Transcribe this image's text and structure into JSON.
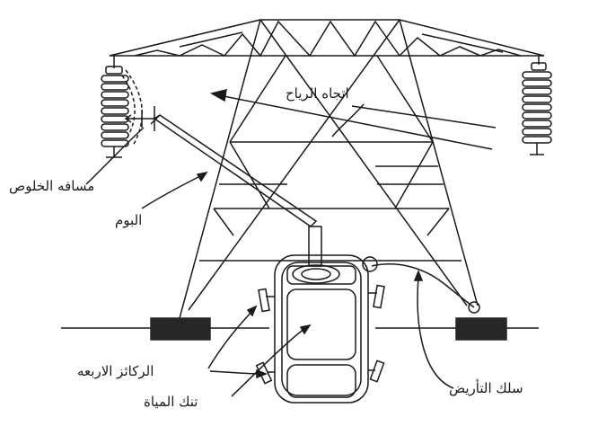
{
  "labels": {
    "wind_direction": "اتجاه الرياح",
    "clearance_distance": "مسافه الخلوص",
    "boom": "البوم",
    "outriggers": "الركائز الاربعه",
    "water_tank": "تنك المياة",
    "ground_wire": "سلك التأريض"
  },
  "colors": {
    "line": "#1a1a1a",
    "footing": "#262626",
    "background": "#ffffff"
  }
}
